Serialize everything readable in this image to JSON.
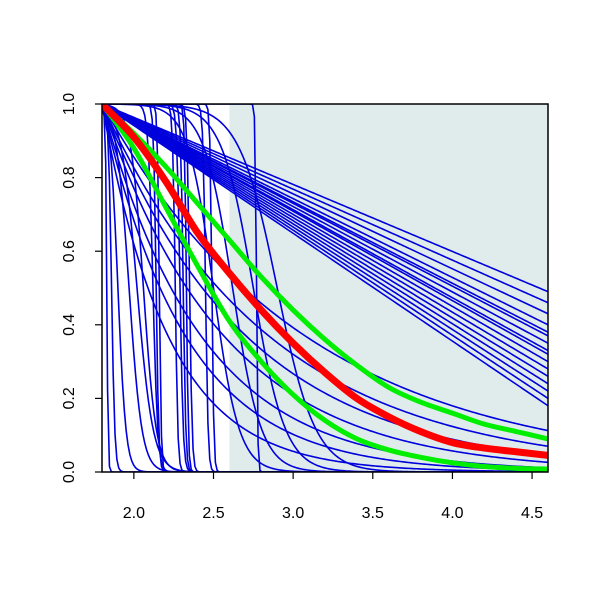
{
  "chart_data": {
    "type": "line",
    "title": "",
    "xlabel": "",
    "ylabel": "",
    "xlim": [
      1.8,
      4.6
    ],
    "ylim": [
      0.0,
      1.0
    ],
    "x_ticks": [
      {
        "value": 2.0,
        "label": "2.0"
      },
      {
        "value": 2.5,
        "label": "2.5"
      },
      {
        "value": 3.0,
        "label": "3.0"
      },
      {
        "value": 3.5,
        "label": "3.5"
      },
      {
        "value": 4.0,
        "label": "4.0"
      },
      {
        "value": 4.5,
        "label": "4.5"
      }
    ],
    "y_ticks": [
      {
        "value": 0.0,
        "label": "0.0"
      },
      {
        "value": 0.2,
        "label": "0.2"
      },
      {
        "value": 0.4,
        "label": "0.4"
      },
      {
        "value": 0.6,
        "label": "0.6"
      },
      {
        "value": 0.8,
        "label": "0.8"
      },
      {
        "value": 1.0,
        "label": "1.0"
      }
    ],
    "grid": false,
    "legend": "none",
    "shaded_region": {
      "x_from": 2.6,
      "x_to": 4.6,
      "color": "#e0ecec"
    },
    "colors": {
      "samples": "#0000dd",
      "central": "#ff0000",
      "band": "#00ee00"
    },
    "central_curve": {
      "x": [
        1.8,
        2.0,
        2.2,
        2.4,
        2.6,
        2.8,
        3.0,
        3.2,
        3.4,
        3.6,
        3.8,
        4.0,
        4.2,
        4.4,
        4.6
      ],
      "y": [
        1.0,
        0.91,
        0.79,
        0.65,
        0.54,
        0.44,
        0.35,
        0.27,
        0.2,
        0.15,
        0.11,
        0.08,
        0.065,
        0.055,
        0.045
      ]
    },
    "band_curves": [
      {
        "x": [
          1.8,
          2.0,
          2.2,
          2.4,
          2.6,
          2.8,
          3.0,
          3.2,
          3.4,
          3.6,
          3.8,
          4.0,
          4.2,
          4.4,
          4.6
        ],
        "y": [
          1.0,
          0.92,
          0.83,
          0.73,
          0.63,
          0.53,
          0.44,
          0.36,
          0.29,
          0.23,
          0.19,
          0.16,
          0.13,
          0.11,
          0.09
        ]
      },
      {
        "x": [
          1.8,
          2.0,
          2.2,
          2.4,
          2.6,
          2.8,
          3.0,
          3.2,
          3.4,
          3.6,
          3.8,
          4.0,
          4.2,
          4.4,
          4.6
        ],
        "y": [
          1.0,
          0.88,
          0.72,
          0.56,
          0.41,
          0.3,
          0.21,
          0.14,
          0.09,
          0.06,
          0.04,
          0.025,
          0.015,
          0.01,
          0.008
        ]
      }
    ],
    "sample_curves": [
      {
        "kind": "linear",
        "end": 0.49
      },
      {
        "kind": "linear",
        "end": 0.46
      },
      {
        "kind": "linear",
        "end": 0.43
      },
      {
        "kind": "linear",
        "end": 0.4
      },
      {
        "kind": "linear",
        "end": 0.38
      },
      {
        "kind": "linear",
        "end": 0.37
      },
      {
        "kind": "linear",
        "end": 0.35
      },
      {
        "kind": "linear",
        "end": 0.33
      },
      {
        "kind": "linear",
        "end": 0.32
      },
      {
        "kind": "linear",
        "end": 0.3
      },
      {
        "kind": "linear",
        "end": 0.28
      },
      {
        "kind": "linear",
        "end": 0.26
      },
      {
        "kind": "linear",
        "end": 0.24
      },
      {
        "kind": "linear",
        "end": 0.22
      },
      {
        "kind": "linear",
        "end": 0.2
      },
      {
        "kind": "linear",
        "end": 0.18
      },
      {
        "kind": "decay",
        "k": 0.78
      },
      {
        "kind": "decay",
        "k": 0.95
      },
      {
        "kind": "decay",
        "k": 1.1
      },
      {
        "kind": "decay",
        "k": 1.3
      },
      {
        "kind": "decay",
        "k": 1.6
      },
      {
        "kind": "decay",
        "k": 1.9
      },
      {
        "kind": "decay",
        "k": 2.4
      },
      {
        "kind": "step",
        "center": 1.83,
        "width": 0.004
      },
      {
        "kind": "step",
        "center": 1.86,
        "width": 0.01
      },
      {
        "kind": "step",
        "center": 1.9,
        "width": 0.025
      },
      {
        "kind": "step",
        "center": 1.97,
        "width": 0.04
      },
      {
        "kind": "step",
        "center": 2.02,
        "width": 0.05
      },
      {
        "kind": "step",
        "center": 2.06,
        "width": 0.04
      },
      {
        "kind": "step",
        "center": 2.12,
        "width": 0.015
      },
      {
        "kind": "step",
        "center": 2.14,
        "width": 0.008
      },
      {
        "kind": "step",
        "center": 2.16,
        "width": 0.006
      },
      {
        "kind": "step",
        "center": 2.26,
        "width": 0.008
      },
      {
        "kind": "step",
        "center": 2.29,
        "width": 0.01
      },
      {
        "kind": "step",
        "center": 2.31,
        "width": 0.008
      },
      {
        "kind": "step",
        "center": 2.33,
        "width": 0.006
      },
      {
        "kind": "step",
        "center": 2.35,
        "width": 0.008
      },
      {
        "kind": "step",
        "center": 2.45,
        "width": 0.008
      },
      {
        "kind": "step",
        "center": 2.49,
        "width": 0.006
      },
      {
        "kind": "step",
        "center": 2.77,
        "width": 0.004
      },
      {
        "kind": "step",
        "center": 2.5,
        "width": 0.08
      },
      {
        "kind": "step",
        "center": 2.62,
        "width": 0.09
      },
      {
        "kind": "step",
        "center": 2.75,
        "width": 0.1
      },
      {
        "kind": "step",
        "center": 2.9,
        "width": 0.12
      }
    ]
  }
}
